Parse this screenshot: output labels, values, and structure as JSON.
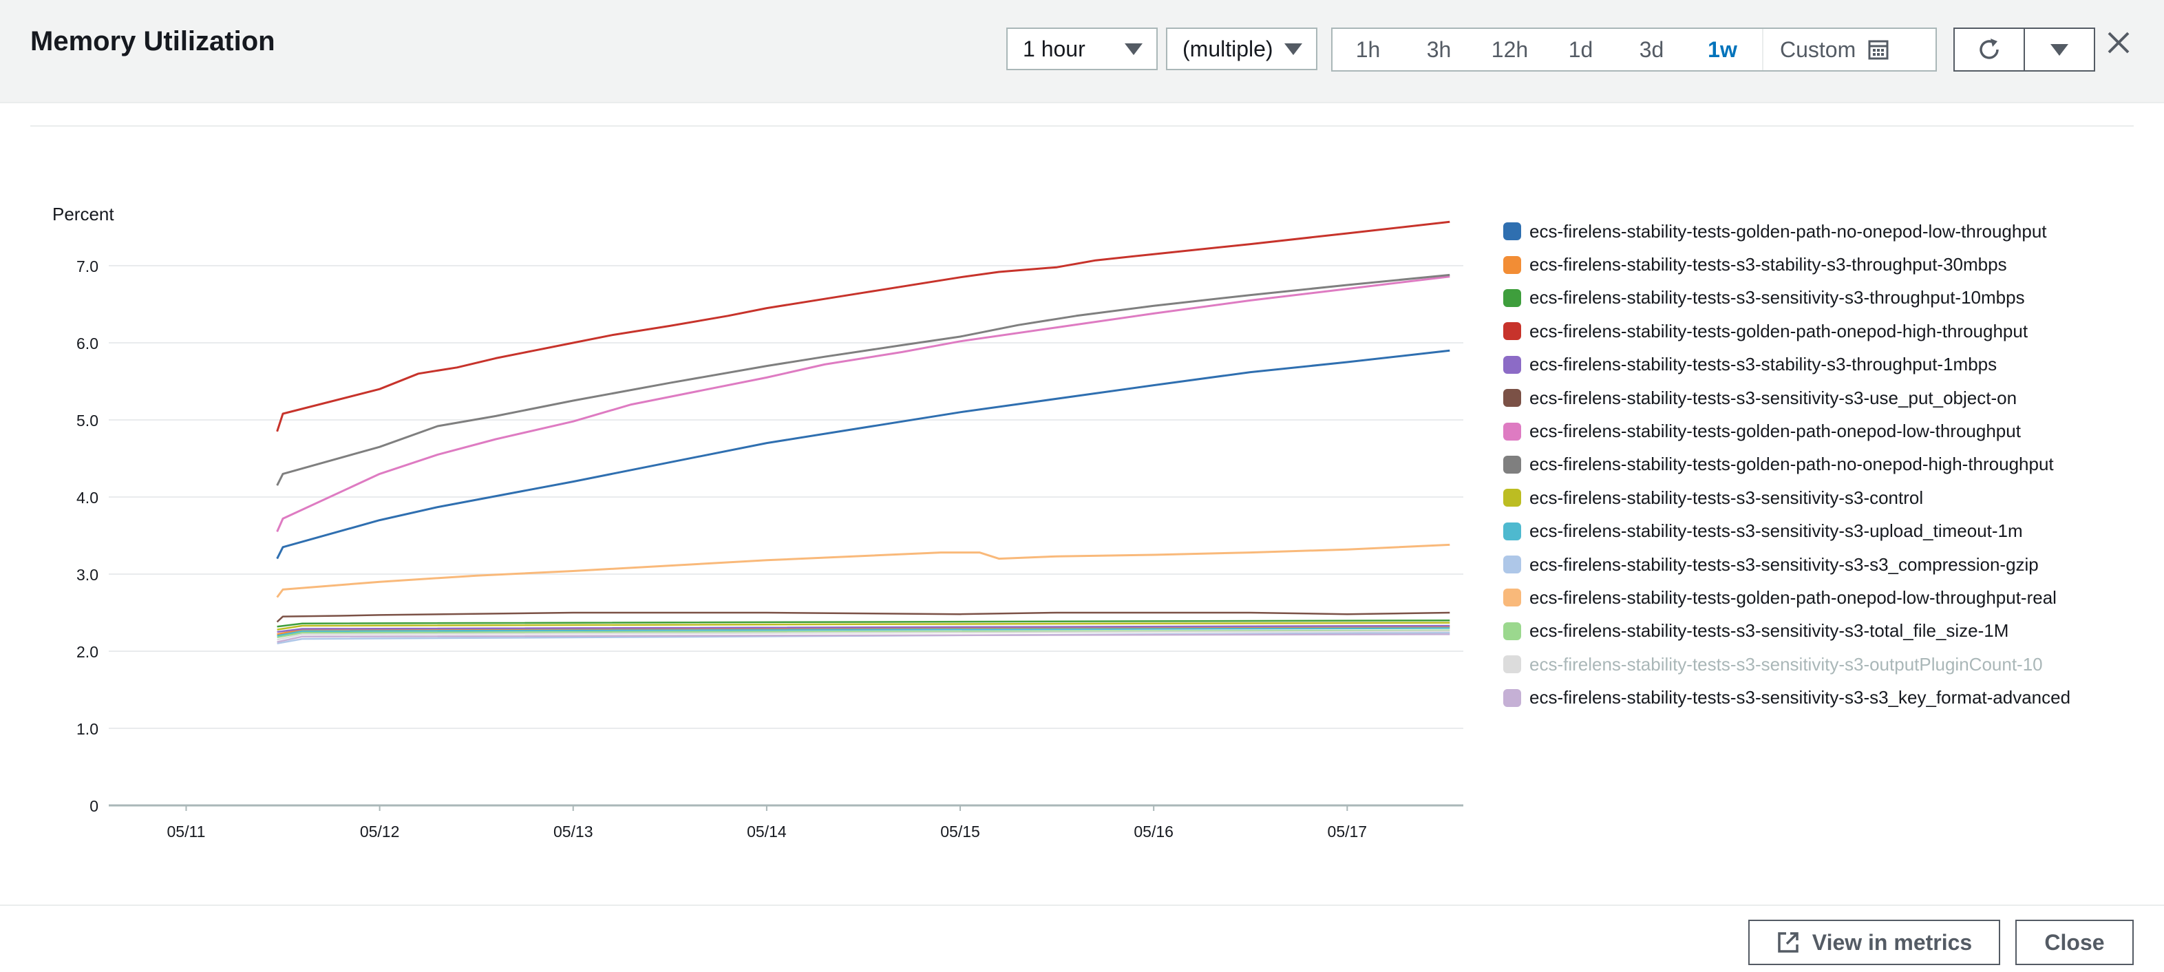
{
  "header": {
    "title": "Memory Utilization",
    "period_select": "1 hour",
    "stat_select": "(multiple)",
    "ranges": [
      "1h",
      "3h",
      "12h",
      "1d",
      "3d",
      "1w"
    ],
    "active_range": "1w",
    "custom_label": "Custom"
  },
  "footer": {
    "view_in_metrics": "View in metrics",
    "close": "Close"
  },
  "colors": {
    "accent": "#0073bb",
    "grid": "#e9ebed",
    "axis": "#aab7b8"
  },
  "chart_data": {
    "type": "line",
    "ylabel": "Percent",
    "ylim": [
      0,
      7.5
    ],
    "yticks": [
      "0",
      "1.0",
      "2.0",
      "3.0",
      "4.0",
      "5.0",
      "6.0",
      "7.0"
    ],
    "xticks": [
      "05/11",
      "05/12",
      "05/13",
      "05/14",
      "05/15",
      "05/16",
      "05/17"
    ],
    "x_domain": [
      10.6,
      17.6
    ],
    "grid": true,
    "legend_position": "right",
    "series": [
      {
        "name": "ecs-firelens-stability-tests-golden-path-no-onepod-low-throughput",
        "color": "#2f6fb0",
        "points": [
          [
            11.47,
            3.2
          ],
          [
            11.5,
            3.35
          ],
          [
            12.0,
            3.7
          ],
          [
            12.3,
            3.87
          ],
          [
            13.0,
            4.2
          ],
          [
            14.0,
            4.7
          ],
          [
            15.0,
            5.1
          ],
          [
            16.0,
            5.45
          ],
          [
            16.5,
            5.62
          ],
          [
            17.0,
            5.75
          ],
          [
            17.53,
            5.9
          ]
        ]
      },
      {
        "name": "ecs-firelens-stability-tests-s3-stability-s3-throughput-30mbps",
        "color": "#f28d35",
        "points": [
          [
            11.47,
            2.22
          ],
          [
            11.6,
            2.28
          ],
          [
            17.53,
            2.32
          ]
        ]
      },
      {
        "name": "ecs-firelens-stability-tests-s3-sensitivity-s3-throughput-10mbps",
        "color": "#3e9e3c",
        "points": [
          [
            11.47,
            2.32
          ],
          [
            11.6,
            2.36
          ],
          [
            17.53,
            2.4
          ]
        ]
      },
      {
        "name": "ecs-firelens-stability-tests-golden-path-onepod-high-throughput",
        "color": "#c7332b",
        "points": [
          [
            11.47,
            4.85
          ],
          [
            11.5,
            5.08
          ],
          [
            12.0,
            5.4
          ],
          [
            12.2,
            5.6
          ],
          [
            12.4,
            5.68
          ],
          [
            12.6,
            5.8
          ],
          [
            12.8,
            5.9
          ],
          [
            13.0,
            6.0
          ],
          [
            13.2,
            6.1
          ],
          [
            13.5,
            6.22
          ],
          [
            13.8,
            6.35
          ],
          [
            14.0,
            6.45
          ],
          [
            14.5,
            6.65
          ],
          [
            15.0,
            6.85
          ],
          [
            15.2,
            6.92
          ],
          [
            15.5,
            6.98
          ],
          [
            15.7,
            7.07
          ],
          [
            16.0,
            7.15
          ],
          [
            16.5,
            7.28
          ],
          [
            17.0,
            7.42
          ],
          [
            17.53,
            7.57
          ]
        ]
      },
      {
        "name": "ecs-firelens-stability-tests-s3-stability-s3-throughput-1mbps",
        "color": "#8c6bc6",
        "points": [
          [
            11.47,
            2.25
          ],
          [
            11.6,
            2.29
          ],
          [
            17.53,
            2.33
          ]
        ]
      },
      {
        "name": "ecs-firelens-stability-tests-s3-sensitivity-s3-use_put_object-on",
        "color": "#7b5146",
        "points": [
          [
            11.47,
            2.38
          ],
          [
            11.5,
            2.45
          ],
          [
            11.8,
            2.46
          ],
          [
            12.0,
            2.47
          ],
          [
            13.0,
            2.5
          ],
          [
            14.0,
            2.5
          ],
          [
            15.0,
            2.48
          ],
          [
            15.5,
            2.5
          ],
          [
            16.0,
            2.5
          ],
          [
            16.5,
            2.5
          ],
          [
            17.0,
            2.48
          ],
          [
            17.53,
            2.5
          ]
        ]
      },
      {
        "name": "ecs-firelens-stability-tests-golden-path-onepod-low-throughput",
        "color": "#de7bc2",
        "points": [
          [
            11.47,
            3.55
          ],
          [
            11.5,
            3.72
          ],
          [
            12.0,
            4.3
          ],
          [
            12.3,
            4.55
          ],
          [
            12.6,
            4.75
          ],
          [
            13.0,
            4.98
          ],
          [
            13.3,
            5.2
          ],
          [
            14.0,
            5.55
          ],
          [
            14.3,
            5.72
          ],
          [
            14.7,
            5.88
          ],
          [
            15.0,
            6.02
          ],
          [
            15.5,
            6.2
          ],
          [
            16.0,
            6.38
          ],
          [
            16.5,
            6.55
          ],
          [
            17.0,
            6.7
          ],
          [
            17.53,
            6.86
          ]
        ]
      },
      {
        "name": "ecs-firelens-stability-tests-golden-path-no-onepod-high-throughput",
        "color": "#7f7f7f",
        "points": [
          [
            11.47,
            4.15
          ],
          [
            11.5,
            4.3
          ],
          [
            12.0,
            4.65
          ],
          [
            12.3,
            4.92
          ],
          [
            12.6,
            5.05
          ],
          [
            13.0,
            5.25
          ],
          [
            13.5,
            5.48
          ],
          [
            14.0,
            5.7
          ],
          [
            14.3,
            5.82
          ],
          [
            14.7,
            5.97
          ],
          [
            15.0,
            6.08
          ],
          [
            15.3,
            6.23
          ],
          [
            15.6,
            6.35
          ],
          [
            16.0,
            6.48
          ],
          [
            16.5,
            6.62
          ],
          [
            17.0,
            6.75
          ],
          [
            17.53,
            6.88
          ]
        ]
      },
      {
        "name": "ecs-firelens-stability-tests-s3-sensitivity-s3-control",
        "color": "#bcbd22",
        "points": [
          [
            11.47,
            2.28
          ],
          [
            11.6,
            2.33
          ],
          [
            17.53,
            2.37
          ]
        ]
      },
      {
        "name": "ecs-firelens-stability-tests-s3-sensitivity-s3-upload_timeout-1m",
        "color": "#4eb9cf",
        "points": [
          [
            11.47,
            2.2
          ],
          [
            11.6,
            2.26
          ],
          [
            17.53,
            2.3
          ]
        ]
      },
      {
        "name": "ecs-firelens-stability-tests-s3-sensitivity-s3-s3_compression-gzip",
        "color": "#aec7e8",
        "points": [
          [
            11.47,
            2.1
          ],
          [
            11.6,
            2.16
          ],
          [
            17.53,
            2.24
          ]
        ]
      },
      {
        "name": "ecs-firelens-stability-tests-golden-path-onepod-low-throughput-real",
        "color": "#f9b97a",
        "points": [
          [
            11.47,
            2.7
          ],
          [
            11.5,
            2.8
          ],
          [
            12.0,
            2.9
          ],
          [
            12.5,
            2.98
          ],
          [
            13.0,
            3.04
          ],
          [
            14.0,
            3.18
          ],
          [
            14.9,
            3.28
          ],
          [
            15.1,
            3.28
          ],
          [
            15.2,
            3.2
          ],
          [
            15.5,
            3.23
          ],
          [
            16.0,
            3.25
          ],
          [
            16.5,
            3.28
          ],
          [
            17.0,
            3.32
          ],
          [
            17.53,
            3.38
          ]
        ]
      },
      {
        "name": "ecs-firelens-stability-tests-s3-sensitivity-s3-total_file_size-1M",
        "color": "#9bd88e",
        "points": [
          [
            11.47,
            2.18
          ],
          [
            11.6,
            2.24
          ],
          [
            17.53,
            2.27
          ]
        ]
      },
      {
        "name": "ecs-firelens-stability-tests-s3-sensitivity-s3-outputPluginCount-10",
        "color": "#dcdcdc",
        "dimmed": true,
        "points": [
          [
            11.47,
            2.15
          ],
          [
            11.6,
            2.22
          ],
          [
            17.53,
            2.26
          ]
        ]
      },
      {
        "name": "ecs-firelens-stability-tests-s3-sensitivity-s3-s3_key_format-advanced",
        "color": "#c5b0d5",
        "points": [
          [
            11.47,
            2.12
          ],
          [
            11.6,
            2.19
          ],
          [
            17.53,
            2.22
          ]
        ]
      }
    ]
  }
}
